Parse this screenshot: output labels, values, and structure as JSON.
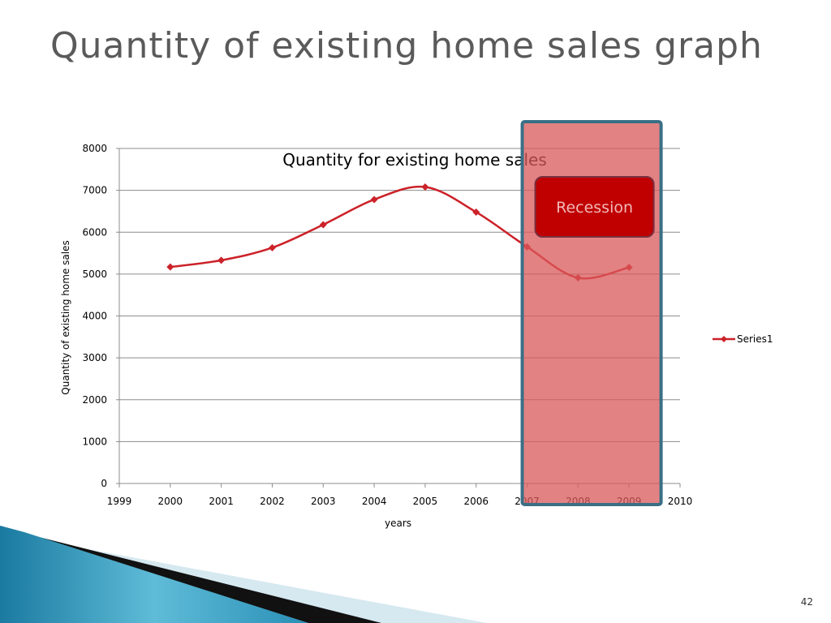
{
  "slide": {
    "title": "Quantity of existing home sales graph",
    "page_number": "42"
  },
  "annotation": {
    "label": "Recession",
    "x_start": 2007,
    "x_end": 2009.5,
    "fill_color": "#d9585a",
    "border_color": "#3a6f86",
    "label_fill": "#c00000",
    "label_border": "#7a3040",
    "label_text_color": "#f2b8b8"
  },
  "chart_data": {
    "type": "line",
    "title": "Quantity for existing home sales",
    "xlabel": "years",
    "ylabel": "Quantity of existing home sales",
    "xlim": [
      1999,
      2010
    ],
    "ylim": [
      0,
      8000
    ],
    "x_ticks": [
      1999,
      2000,
      2001,
      2002,
      2003,
      2004,
      2005,
      2006,
      2007,
      2008,
      2009,
      2010
    ],
    "y_ticks": [
      0,
      1000,
      2000,
      3000,
      4000,
      5000,
      6000,
      7000,
      8000
    ],
    "grid": "horizontal",
    "legend_position": "right",
    "series": [
      {
        "name": "Series1",
        "color": "#cc2229",
        "x": [
          2000,
          2001,
          2002,
          2003,
          2004,
          2005,
          2006,
          2007,
          2008,
          2009
        ],
        "y": [
          5170,
          5330,
          5630,
          6180,
          6780,
          7080,
          6480,
          5650,
          4910,
          5160
        ]
      }
    ]
  }
}
